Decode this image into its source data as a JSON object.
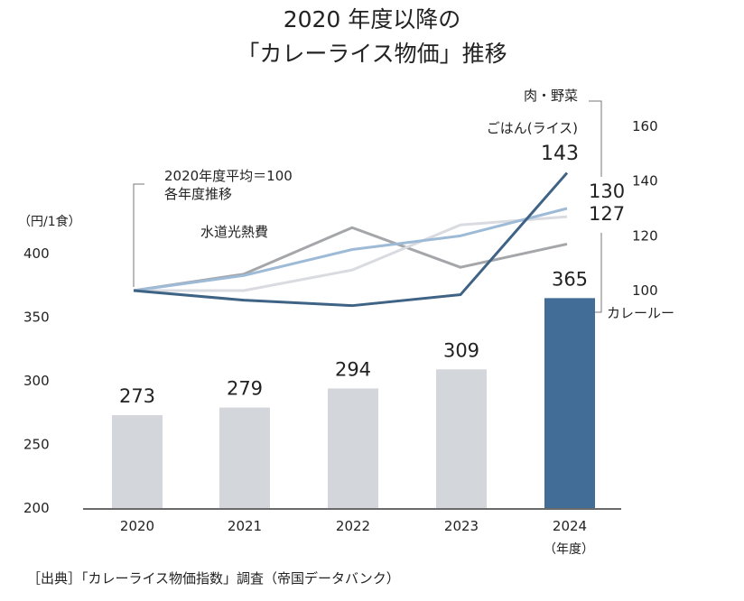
{
  "chart_data": {
    "type": "bar+line",
    "title": [
      "2020 年度以降の",
      "「カレーライス物価」推移"
    ],
    "categories": [
      "2020",
      "2021",
      "2022",
      "2023",
      "2024"
    ],
    "xlabel": "（年度）",
    "bars": {
      "ylabel": "（円/1食）",
      "ylim": [
        200,
        400
      ],
      "yticks": [
        200,
        250,
        300,
        350,
        400
      ],
      "values": [
        273,
        279,
        294,
        309,
        365
      ],
      "colors": [
        "#d3d6da",
        "#d3d6da",
        "#d3d6da",
        "#d3d6da",
        "#426d97"
      ]
    },
    "lines": {
      "note": [
        "2020年度平均＝100",
        "各年度推移"
      ],
      "ylim": [
        100,
        160
      ],
      "yticks": [
        100,
        120,
        140,
        160
      ],
      "series": [
        {
          "name": "水道光熱費",
          "values": [
            100,
            106,
            123,
            108.5,
            117
          ],
          "color": "#a4a6a9"
        },
        {
          "name": "カレールー",
          "values": [
            100,
            100,
            107.5,
            124,
            127
          ],
          "color": "#d9dbe0",
          "end_label": "127"
        },
        {
          "name": "肉・野菜",
          "values": [
            100,
            105.5,
            115,
            120,
            130
          ],
          "color": "#9dbad6",
          "end_label": "130"
        },
        {
          "name": "ごはん(ライス)",
          "values": [
            100,
            96.5,
            94.5,
            98.5,
            143
          ],
          "color": "#3f6385",
          "end_label": "143"
        }
      ]
    },
    "source": "［出典］「カレーライス物価指数」調査（帝国データバンク）"
  }
}
